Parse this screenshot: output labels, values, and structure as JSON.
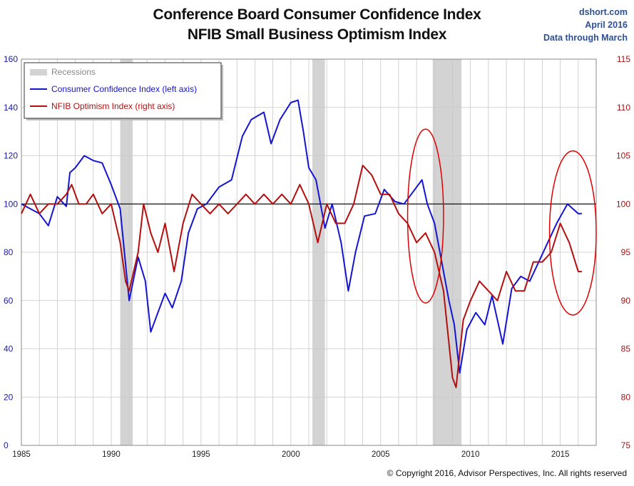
{
  "header": {
    "title_line1": "Conference Board Consumer Confidence Index",
    "title_line2": "NFIB Small Business Optimism Index",
    "source": "dshort.com",
    "date": "April 2016",
    "data_through": "Data through March"
  },
  "footer": {
    "copyright": "© Copyright 2016, Advisor Perspectives, Inc. All rights reserved"
  },
  "colors": {
    "consumer": "#1414d2",
    "nfib": "#b40f0f",
    "recession": "#d3d3d3",
    "left_axis": "#1a1aa8",
    "right_axis": "#9a1414"
  },
  "chart_data": {
    "type": "line",
    "x_range": [
      1985,
      2017
    ],
    "left_axis": {
      "ylim": [
        0,
        160
      ],
      "ticks": [
        0,
        20,
        40,
        60,
        80,
        100,
        120,
        140,
        160
      ]
    },
    "right_axis": {
      "ylim": [
        75,
        115
      ],
      "ticks": [
        75,
        80,
        85,
        90,
        95,
        100,
        105,
        110,
        115
      ]
    },
    "x_ticks": [
      1985,
      1990,
      1995,
      2000,
      2005,
      2010,
      2015
    ],
    "reference_line": {
      "axis": "left",
      "value": 100
    },
    "grid": true,
    "legend_position": "top-left",
    "legend": [
      {
        "label": "Recessions",
        "kind": "shade"
      },
      {
        "label": "Consumer Confidence Index (left axis)",
        "kind": "line",
        "series": "consumer"
      },
      {
        "label": "NFIB Optimism Index (right axis)",
        "kind": "line",
        "series": "nfib"
      }
    ],
    "recessions": [
      [
        1990.5,
        1991.2
      ],
      [
        2001.2,
        2001.9
      ],
      [
        2007.9,
        2009.5
      ]
    ],
    "annotations": [
      {
        "shape": "ellipse",
        "color": "#e00000",
        "center": [
          2007.5,
          95
        ],
        "rx": 1.0,
        "ry": 36,
        "axis": "left"
      },
      {
        "shape": "ellipse",
        "color": "#e00000",
        "center": [
          2015.7,
          88
        ],
        "rx": 1.3,
        "ry": 34,
        "axis": "left"
      }
    ],
    "series": [
      {
        "id": "consumer",
        "name": "Consumer Confidence Index (left axis)",
        "axis": "left",
        "x": [
          1985.0,
          1985.5,
          1986.0,
          1986.5,
          1987.0,
          1987.5,
          1987.7,
          1988.0,
          1988.5,
          1989.0,
          1989.5,
          1990.0,
          1990.5,
          1990.8,
          1991.0,
          1991.5,
          1991.9,
          1992.2,
          1992.6,
          1993.0,
          1993.4,
          1993.9,
          1994.3,
          1994.8,
          1995.3,
          1996.0,
          1996.7,
          1997.3,
          1997.8,
          1998.5,
          1998.9,
          1999.4,
          2000.0,
          2000.4,
          2000.7,
          2001.0,
          2001.4,
          2001.9,
          2002.3,
          2002.8,
          2003.2,
          2003.6,
          2004.1,
          2004.7,
          2005.2,
          2005.8,
          2006.3,
          2006.8,
          2007.3,
          2007.6,
          2008.0,
          2008.4,
          2008.8,
          2009.1,
          2009.4,
          2009.8,
          2010.3,
          2010.8,
          2011.2,
          2011.8,
          2012.3,
          2012.8,
          2013.3,
          2013.8,
          2014.3,
          2014.8,
          2015.1,
          2015.4,
          2015.7,
          2016.0,
          2016.2
        ],
        "y": [
          100,
          98,
          96,
          91,
          103,
          99,
          113,
          115,
          120,
          118,
          117,
          108,
          98,
          75,
          60,
          78,
          68,
          47,
          55,
          63,
          57,
          68,
          88,
          98,
          100,
          107,
          110,
          128,
          135,
          138,
          125,
          135,
          142,
          143,
          130,
          115,
          110,
          90,
          100,
          84,
          64,
          80,
          95,
          96,
          106,
          101,
          100,
          105,
          110,
          100,
          92,
          76,
          60,
          50,
          30,
          48,
          55,
          50,
          62,
          42,
          65,
          70,
          68,
          76,
          84,
          92,
          96,
          100,
          98,
          96,
          96
        ]
      },
      {
        "id": "nfib",
        "name": "NFIB Optimism Index (right axis)",
        "axis": "right",
        "x": [
          1985.0,
          1985.5,
          1986.0,
          1986.5,
          1987.0,
          1987.5,
          1987.8,
          1988.2,
          1988.6,
          1989.0,
          1989.5,
          1990.0,
          1990.5,
          1990.8,
          1991.0,
          1991.5,
          1991.8,
          1992.2,
          1992.6,
          1993.0,
          1993.5,
          1994.0,
          1994.5,
          1995.0,
          1995.5,
          1996.0,
          1996.5,
          1997.0,
          1997.5,
          1998.0,
          1998.5,
          1999.0,
          1999.5,
          2000.0,
          2000.5,
          2001.0,
          2001.5,
          2002.0,
          2002.5,
          2003.0,
          2003.5,
          2004.0,
          2004.5,
          2005.0,
          2005.5,
          2006.0,
          2006.5,
          2007.0,
          2007.5,
          2008.0,
          2008.5,
          2009.0,
          2009.2,
          2009.6,
          2010.0,
          2010.5,
          2011.0,
          2011.5,
          2012.0,
          2012.5,
          2013.0,
          2013.5,
          2014.0,
          2014.5,
          2015.0,
          2015.5,
          2016.0,
          2016.2
        ],
        "y": [
          99,
          101,
          99,
          100,
          100,
          101,
          102,
          100,
          100,
          101,
          99,
          100,
          96,
          92,
          91,
          95,
          100,
          97,
          95,
          98,
          93,
          98,
          101,
          100,
          99,
          100,
          99,
          100,
          101,
          100,
          101,
          100,
          101,
          100,
          102,
          100,
          96,
          100,
          98,
          98,
          100,
          104,
          103,
          101,
          101,
          99,
          98,
          96,
          97,
          95,
          91,
          82,
          81,
          88,
          90,
          92,
          91,
          90,
          93,
          91,
          91,
          94,
          94,
          95,
          98,
          96,
          93,
          93
        ]
      }
    ]
  }
}
